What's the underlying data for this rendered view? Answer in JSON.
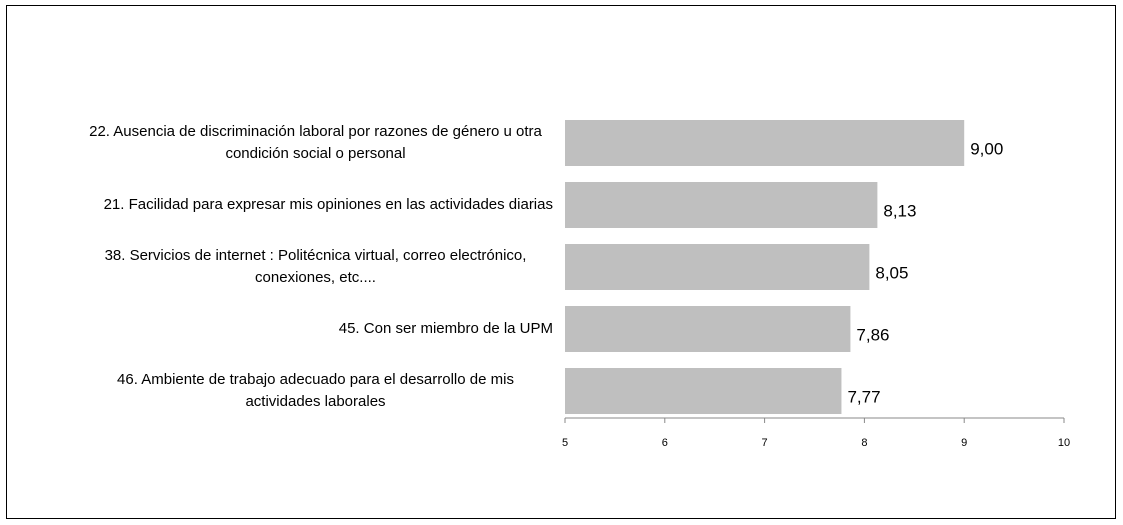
{
  "chart_data": {
    "type": "bar",
    "orientation": "horizontal",
    "categories": [
      "22. Ausencia de discriminación laboral por razones de género u otra condición social o personal",
      "21. Facilidad para expresar mis opiniones en las actividades diarias",
      "38. Servicios de internet : Politécnica virtual, correo electrónico, conexiones, etc....",
      "45. Con ser miembro de la UPM",
      "46. Ambiente de trabajo adecuado para el desarrollo de mis actividades laborales"
    ],
    "values": [
      9.0,
      8.13,
      8.05,
      7.86,
      7.77
    ],
    "value_labels": [
      "9,00",
      "8,13",
      "8,05",
      "7,86",
      "7,77"
    ],
    "color": "#bfbfbf",
    "xlim": [
      5,
      10
    ],
    "xticks": [
      5,
      6,
      7,
      8,
      9,
      10
    ],
    "grid": false
  }
}
